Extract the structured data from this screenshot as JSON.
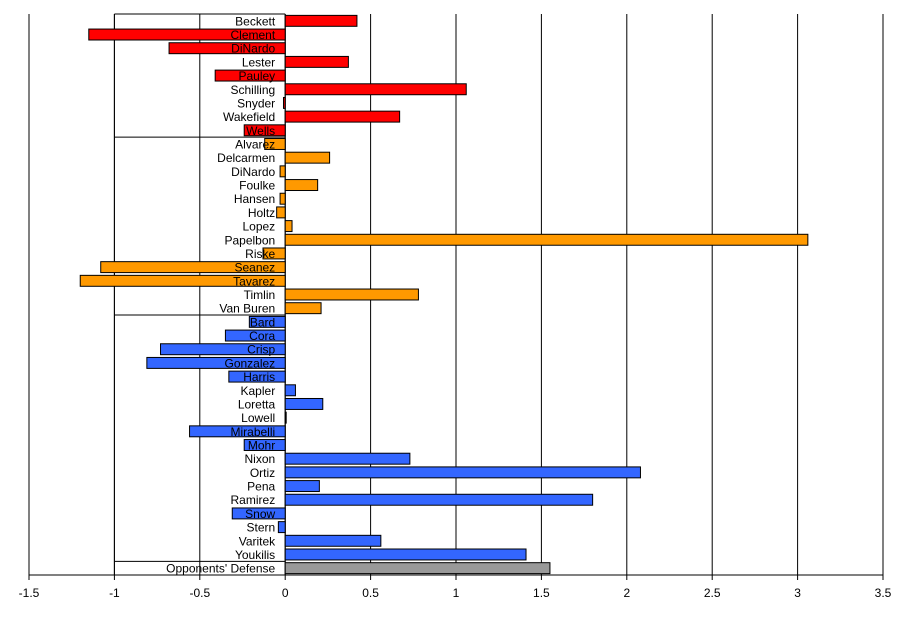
{
  "chart_data": {
    "type": "bar",
    "orientation": "horizontal",
    "title": "",
    "xlabel": "",
    "ylabel": "",
    "xlim": [
      -1.5,
      3.5
    ],
    "xticks": [
      "-1.5",
      "-1",
      "-0.5",
      "0",
      "0.5",
      "1",
      "1.5",
      "2",
      "2.5",
      "3",
      "3.5"
    ],
    "grid": "vertical gridlines at each major tick",
    "legend": "none",
    "colors": {
      "starters": "#ff0000",
      "relievers": "#ff9900",
      "position_players": "#3366ff",
      "defense": "#999999"
    },
    "groups": [
      {
        "color_key": "starters",
        "categories": [
          "Beckett",
          "Clement",
          "DiNardo",
          "Lester",
          "Pauley",
          "Schilling",
          "Snyder",
          "Wakefield",
          "Wells"
        ],
        "values": [
          0.42,
          -1.15,
          -0.68,
          0.37,
          -0.41,
          1.06,
          -0.01,
          0.67,
          -0.24
        ]
      },
      {
        "color_key": "relievers",
        "categories": [
          "Alvarez",
          "Delcarmen",
          "DiNardo",
          "Foulke",
          "Hansen",
          "Holtz",
          "Lopez",
          "Papelbon",
          "Riske",
          "Seanez",
          "Tavarez",
          "Timlin",
          "Van Buren"
        ],
        "values": [
          -0.12,
          0.26,
          -0.03,
          0.19,
          -0.03,
          -0.05,
          0.04,
          3.06,
          -0.13,
          -1.08,
          -1.2,
          0.78,
          0.21
        ]
      },
      {
        "color_key": "position_players",
        "categories": [
          "Bard",
          "Cora",
          "Crisp",
          "Gonzalez",
          "Harris",
          "Kapler",
          "Loretta",
          "Lowell",
          "Mirabelli",
          "Mohr",
          "Nixon",
          "Ortiz",
          "Pena",
          "Ramirez",
          "Snow",
          "Stern",
          "Varitek",
          "Youkilis"
        ],
        "values": [
          -0.21,
          -0.35,
          -0.73,
          -0.81,
          -0.33,
          0.06,
          0.22,
          0.005,
          -0.56,
          -0.24,
          0.73,
          2.08,
          0.2,
          1.8,
          -0.31,
          -0.04,
          0.56,
          1.41
        ]
      },
      {
        "color_key": "defense",
        "categories": [
          "Opponents' Defense"
        ],
        "values": [
          1.55
        ]
      }
    ]
  }
}
